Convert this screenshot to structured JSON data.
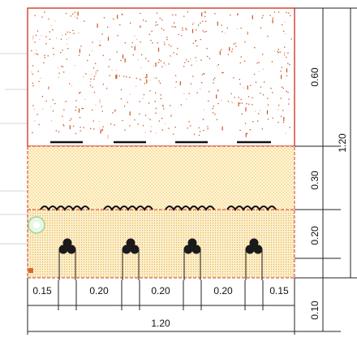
{
  "drawing": {
    "layer_depths": {
      "top": "0.60",
      "middle": "0.30",
      "bottom": "0.20",
      "below": "0.10",
      "total": "1.20"
    },
    "spacings": [
      "0.15",
      "0.20",
      "0.20",
      "0.20",
      "0.15"
    ],
    "overall_width": "1.20",
    "cable_groups": 4,
    "colors": {
      "outline": "#d23b2a",
      "soil_dots": "#c9541e",
      "sand_fill": "#f3c34a",
      "bottom_fill": "#e6b33e",
      "cable": "#1a1a1a",
      "dim_line": "#222222"
    }
  }
}
